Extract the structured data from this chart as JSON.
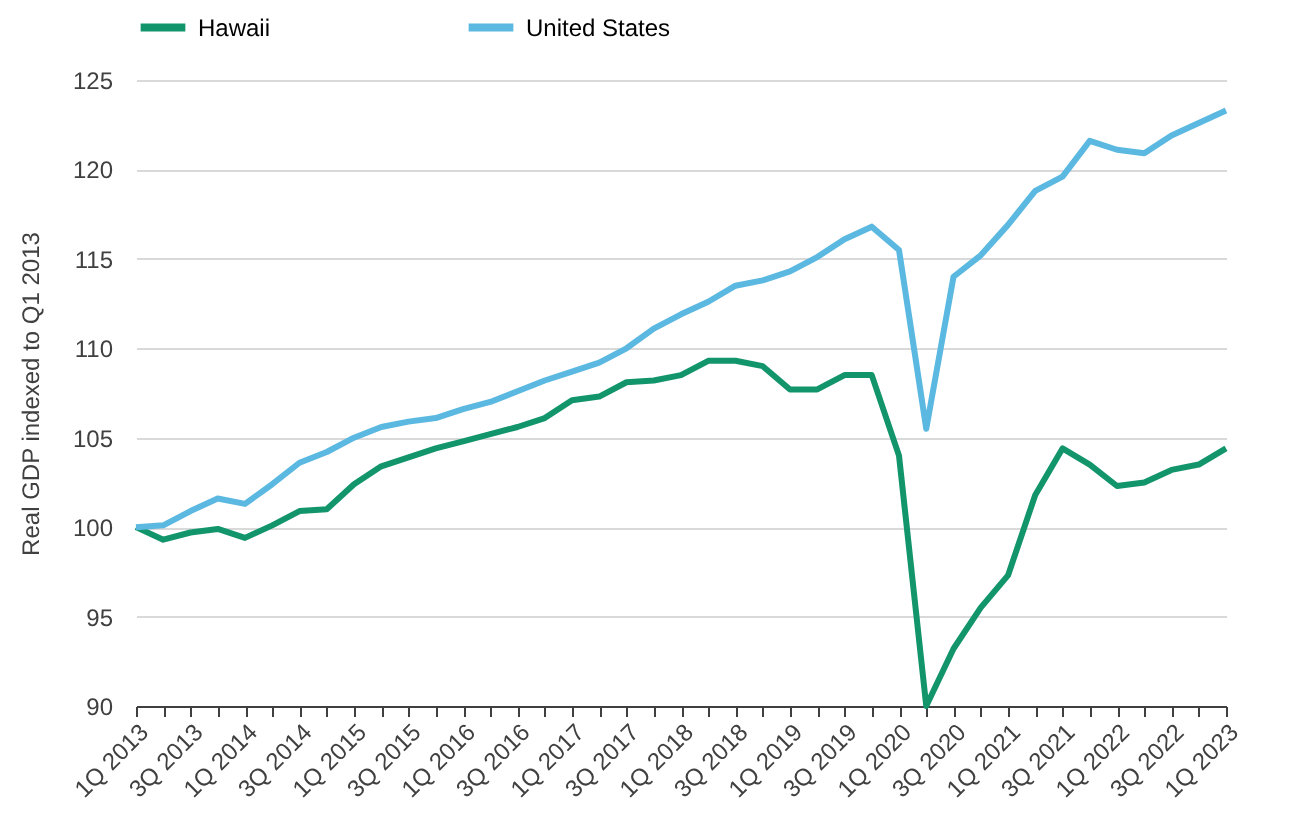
{
  "chart_data": {
    "type": "line",
    "ylabel": "Real GDP indexed to Q1 2013",
    "categories": [
      "1Q 2013",
      null,
      "3Q 2013",
      null,
      "1Q 2014",
      null,
      "3Q 2014",
      null,
      "1Q 2015",
      null,
      "3Q 2015",
      null,
      "1Q 2016",
      null,
      "3Q 2016",
      null,
      "1Q 2017",
      null,
      "3Q 2017",
      null,
      "1Q 2018",
      null,
      "3Q 2018",
      null,
      "1Q 2019",
      null,
      "3Q 2019",
      null,
      "1Q 2020",
      null,
      "3Q 2020",
      null,
      "1Q 2021",
      null,
      "3Q 2021",
      null,
      "1Q 2022",
      null,
      "3Q 2022",
      null,
      "1Q 2023"
    ],
    "series": [
      {
        "name": "Hawaii",
        "color": "#13956b",
        "values": [
          100,
          99.3,
          99.7,
          99.9,
          99.4,
          100.1,
          100.9,
          101.0,
          102.4,
          103.4,
          103.9,
          104.4,
          104.8,
          105.2,
          105.6,
          106.1,
          107.1,
          107.3,
          108.1,
          108.2,
          108.5,
          109.3,
          109.3,
          109.0,
          107.7,
          107.7,
          108.5,
          108.5,
          104.0,
          90.0,
          93.2,
          95.5,
          97.3,
          101.8,
          104.4,
          103.5,
          102.3,
          102.5,
          103.2,
          103.5,
          104.4
        ]
      },
      {
        "name": "United States",
        "color": "#5bb8e0",
        "values": [
          100,
          100.1,
          100.9,
          101.6,
          101.3,
          102.4,
          103.6,
          104.2,
          105.0,
          105.6,
          105.9,
          106.1,
          106.6,
          107.0,
          107.6,
          108.2,
          108.7,
          109.2,
          110.0,
          111.1,
          111.9,
          112.6,
          113.5,
          113.8,
          114.3,
          115.1,
          116.1,
          116.8,
          115.5,
          105.5,
          114.0,
          115.2,
          116.9,
          118.8,
          119.6,
          121.6,
          121.1,
          120.9,
          121.9,
          122.6,
          123.3
        ]
      }
    ],
    "ylim": [
      90,
      125
    ],
    "yticks": [
      90,
      95,
      100,
      105,
      110,
      115,
      120,
      125
    ],
    "grid": "y",
    "legend": "top",
    "marker": "none",
    "line_style": "solid"
  }
}
